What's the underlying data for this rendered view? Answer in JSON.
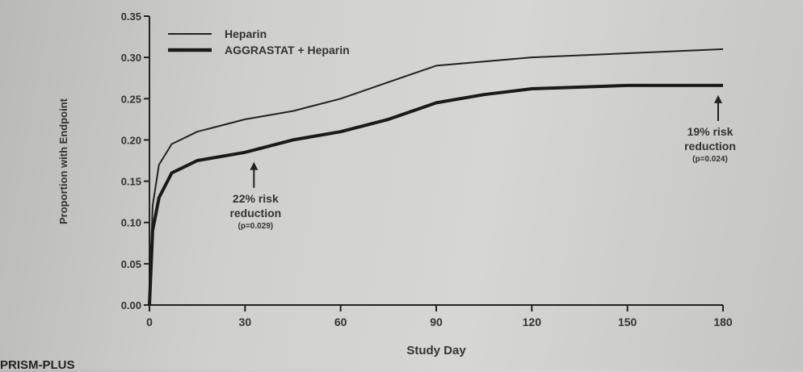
{
  "chart_data": {
    "type": "line",
    "title": "",
    "xlabel": "Study Day",
    "ylabel": "Proportion with Endpoint",
    "xlim": [
      0,
      180
    ],
    "ylim": [
      0,
      0.35
    ],
    "xticks": [
      0,
      30,
      60,
      90,
      120,
      150,
      180
    ],
    "xtick_labels": [
      "0",
      "30",
      "60",
      "90",
      "120",
      "150",
      "180"
    ],
    "yticks": [
      0,
      0.05,
      0.1,
      0.15,
      0.2,
      0.25,
      0.3,
      0.35
    ],
    "ytick_labels": [
      "0.00",
      "0.05",
      "0.10",
      "0.15",
      "0.20",
      "0.25",
      "0.30",
      "0.35"
    ],
    "grid": false,
    "legend_position": "top-left",
    "series": [
      {
        "name": "Heparin",
        "style": "thin",
        "color": "#222222",
        "x": [
          0,
          1,
          3,
          7,
          15,
          30,
          45,
          60,
          75,
          90,
          105,
          120,
          150,
          180
        ],
        "y": [
          0,
          0.12,
          0.17,
          0.195,
          0.21,
          0.225,
          0.235,
          0.25,
          0.27,
          0.29,
          0.295,
          0.3,
          0.305,
          0.31
        ]
      },
      {
        "name": "AGGRASTAT + Heparin",
        "style": "thick",
        "color": "#1a1a1a",
        "x": [
          0,
          1,
          3,
          7,
          15,
          30,
          45,
          60,
          75,
          90,
          105,
          120,
          150,
          180
        ],
        "y": [
          0,
          0.09,
          0.13,
          0.16,
          0.175,
          0.185,
          0.2,
          0.21,
          0.225,
          0.245,
          0.255,
          0.262,
          0.266,
          0.266
        ]
      }
    ],
    "annotations": [
      {
        "x": 30,
        "y": 0.185,
        "lines": [
          "22% risk",
          "reduction",
          "(p=0.029)"
        ]
      },
      {
        "x": 180,
        "y": 0.266,
        "lines": [
          "19% risk",
          "reduction",
          "(p=0.024)"
        ]
      }
    ]
  },
  "caption": "PRISM-PLUS"
}
